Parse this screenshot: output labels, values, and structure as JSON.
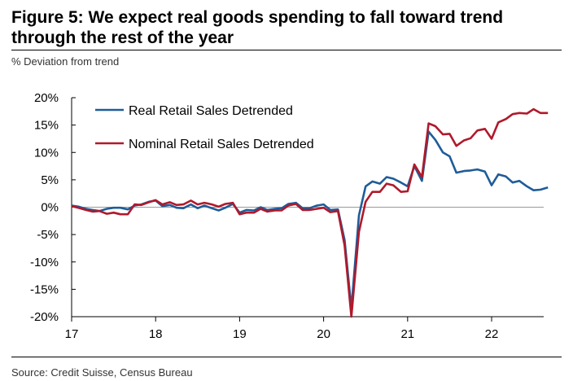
{
  "title": "Figure 5: We expect real goods spending to fall toward trend through the rest of the year",
  "subtitle": "% Deviation from trend",
  "source": "Source: Credit Suisse, Census Bureau",
  "chart_data": {
    "type": "line",
    "title": "Figure 5: We expect real goods spending to fall toward trend through the rest of the year",
    "ylabel": "% Deviation from trend",
    "xlabel": "",
    "ylim": [
      -20,
      20
    ],
    "xlim": [
      17,
      22.62
    ],
    "yticks": [
      20,
      15,
      10,
      5,
      0,
      -5,
      -10,
      -15,
      -20
    ],
    "ytick_labels": [
      "20%",
      "15%",
      "10%",
      "5%",
      "0%",
      "-5%",
      "-10%",
      "-15%",
      "-20%"
    ],
    "xticks": [
      17,
      18,
      19,
      20,
      21,
      22
    ],
    "xtick_labels": [
      "17",
      "18",
      "19",
      "20",
      "21",
      "22"
    ],
    "legend_position": "top-left",
    "colors": {
      "real": "#1f5c99",
      "nominal": "#b0192b",
      "zero_line": "#999999",
      "axis": "#000000"
    },
    "series": [
      {
        "name": "Real Retail Sales Detrended",
        "color": "#1f5c99",
        "points": [
          [
            17.0,
            0.3
          ],
          [
            17.08,
            0.1
          ],
          [
            17.17,
            -0.3
          ],
          [
            17.25,
            -0.5
          ],
          [
            17.33,
            -0.7
          ],
          [
            17.42,
            -0.3
          ],
          [
            17.5,
            -0.1
          ],
          [
            17.58,
            -0.1
          ],
          [
            17.67,
            -0.4
          ],
          [
            17.75,
            0.3
          ],
          [
            17.83,
            0.5
          ],
          [
            17.92,
            1.0
          ],
          [
            18.0,
            1.2
          ],
          [
            18.08,
            0.2
          ],
          [
            18.17,
            0.4
          ],
          [
            18.25,
            -0.1
          ],
          [
            18.33,
            -0.2
          ],
          [
            18.42,
            0.5
          ],
          [
            18.5,
            -0.2
          ],
          [
            18.58,
            0.3
          ],
          [
            18.67,
            -0.2
          ],
          [
            18.75,
            -0.6
          ],
          [
            18.83,
            -0.1
          ],
          [
            18.92,
            0.6
          ],
          [
            19.0,
            -1.0
          ],
          [
            19.08,
            -0.5
          ],
          [
            19.17,
            -0.6
          ],
          [
            19.25,
            0.0
          ],
          [
            19.33,
            -0.5
          ],
          [
            19.42,
            -0.3
          ],
          [
            19.5,
            -0.2
          ],
          [
            19.58,
            0.6
          ],
          [
            19.67,
            0.8
          ],
          [
            19.75,
            -0.2
          ],
          [
            19.83,
            -0.2
          ],
          [
            19.92,
            0.3
          ],
          [
            20.0,
            0.5
          ],
          [
            20.08,
            -0.5
          ],
          [
            20.17,
            -0.4
          ],
          [
            20.25,
            -6.0
          ],
          [
            20.33,
            -18.5
          ],
          [
            20.42,
            -1.5
          ],
          [
            20.5,
            3.8
          ],
          [
            20.58,
            4.7
          ],
          [
            20.67,
            4.3
          ],
          [
            20.75,
            5.5
          ],
          [
            20.83,
            5.2
          ],
          [
            20.92,
            4.5
          ],
          [
            21.0,
            3.8
          ],
          [
            21.08,
            7.5
          ],
          [
            21.17,
            4.8
          ],
          [
            21.25,
            13.8
          ],
          [
            21.33,
            12.3
          ],
          [
            21.42,
            10.0
          ],
          [
            21.5,
            9.3
          ],
          [
            21.58,
            6.3
          ],
          [
            21.67,
            6.6
          ],
          [
            21.75,
            6.7
          ],
          [
            21.83,
            6.9
          ],
          [
            21.92,
            6.5
          ],
          [
            22.0,
            4.0
          ],
          [
            22.08,
            6.0
          ],
          [
            22.17,
            5.6
          ],
          [
            22.25,
            4.5
          ],
          [
            22.33,
            4.8
          ],
          [
            22.42,
            3.8
          ],
          [
            22.5,
            3.1
          ],
          [
            22.58,
            3.2
          ],
          [
            22.67,
            3.6
          ]
        ]
      },
      {
        "name": "Nominal Retail Sales Detrended",
        "color": "#b0192b",
        "points": [
          [
            17.0,
            0.2
          ],
          [
            17.08,
            -0.1
          ],
          [
            17.17,
            -0.5
          ],
          [
            17.25,
            -0.8
          ],
          [
            17.33,
            -0.7
          ],
          [
            17.42,
            -1.2
          ],
          [
            17.5,
            -1.0
          ],
          [
            17.58,
            -1.3
          ],
          [
            17.67,
            -1.3
          ],
          [
            17.75,
            0.5
          ],
          [
            17.83,
            0.4
          ],
          [
            17.92,
            0.9
          ],
          [
            18.0,
            1.3
          ],
          [
            18.08,
            0.5
          ],
          [
            18.17,
            0.9
          ],
          [
            18.25,
            0.4
          ],
          [
            18.33,
            0.5
          ],
          [
            18.42,
            1.2
          ],
          [
            18.5,
            0.5
          ],
          [
            18.58,
            0.8
          ],
          [
            18.67,
            0.5
          ],
          [
            18.75,
            0.1
          ],
          [
            18.83,
            0.6
          ],
          [
            18.92,
            0.8
          ],
          [
            19.0,
            -1.3
          ],
          [
            19.08,
            -1.0
          ],
          [
            19.17,
            -1.0
          ],
          [
            19.25,
            -0.3
          ],
          [
            19.33,
            -0.8
          ],
          [
            19.42,
            -0.6
          ],
          [
            19.5,
            -0.6
          ],
          [
            19.58,
            0.3
          ],
          [
            19.67,
            0.6
          ],
          [
            19.75,
            -0.5
          ],
          [
            19.83,
            -0.5
          ],
          [
            19.92,
            -0.3
          ],
          [
            20.0,
            -0.1
          ],
          [
            20.08,
            -0.9
          ],
          [
            20.17,
            -0.7
          ],
          [
            20.25,
            -7.0
          ],
          [
            20.33,
            -20.0
          ],
          [
            20.42,
            -4.5
          ],
          [
            20.5,
            1.0
          ],
          [
            20.58,
            2.8
          ],
          [
            20.67,
            2.8
          ],
          [
            20.75,
            4.3
          ],
          [
            20.83,
            4.0
          ],
          [
            20.92,
            2.8
          ],
          [
            21.0,
            2.9
          ],
          [
            21.08,
            7.8
          ],
          [
            21.17,
            5.5
          ],
          [
            21.25,
            15.3
          ],
          [
            21.33,
            14.8
          ],
          [
            21.42,
            13.3
          ],
          [
            21.5,
            13.4
          ],
          [
            21.58,
            11.2
          ],
          [
            21.67,
            12.2
          ],
          [
            21.75,
            12.6
          ],
          [
            21.83,
            14.0
          ],
          [
            21.92,
            14.3
          ],
          [
            22.0,
            12.5
          ],
          [
            22.08,
            15.5
          ],
          [
            22.17,
            16.1
          ],
          [
            22.25,
            17.0
          ],
          [
            22.33,
            17.2
          ],
          [
            22.42,
            17.1
          ],
          [
            22.5,
            17.9
          ],
          [
            22.58,
            17.2
          ],
          [
            22.67,
            17.2
          ]
        ]
      }
    ]
  }
}
